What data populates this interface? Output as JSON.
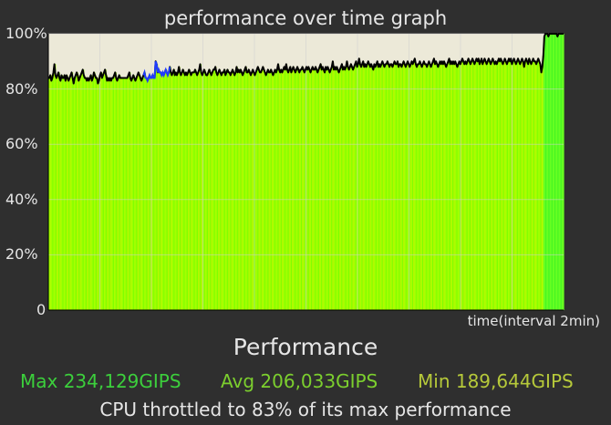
{
  "title": "performance over time graph",
  "chart_data": {
    "type": "area",
    "title": "performance over time graph",
    "xlabel": "time(interval 2min)",
    "y_tick_labels": [
      "100%",
      "80%",
      "60%",
      "40%",
      "20%",
      "0"
    ],
    "ylim": [
      0,
      100
    ],
    "grid": true,
    "series": [
      {
        "values": [
          84,
          84,
          85,
          83,
          84,
          86,
          89,
          85,
          84,
          85,
          86,
          84,
          83,
          85,
          84,
          84,
          85,
          83,
          85,
          84,
          83,
          84,
          85,
          86,
          84,
          82,
          84,
          85,
          86,
          85,
          83,
          84,
          85,
          86,
          87,
          85,
          84,
          84,
          83,
          84,
          83,
          84,
          85,
          83,
          84,
          86,
          85,
          84,
          84,
          82,
          83,
          85,
          86,
          84,
          85,
          86,
          87,
          85,
          83,
          84,
          83,
          84,
          83,
          84,
          84,
          85,
          86,
          84,
          83,
          84,
          85,
          84,
          84,
          84,
          84,
          84,
          84,
          84,
          84,
          85,
          86,
          84,
          83,
          84,
          85,
          84,
          83,
          84,
          85,
          86,
          85,
          84,
          83,
          84,
          85,
          86,
          84,
          84,
          83,
          84,
          85,
          84,
          84,
          85,
          84,
          84,
          90,
          89,
          86,
          87,
          86,
          86,
          85,
          86,
          85,
          86,
          87,
          86,
          85,
          86,
          88,
          86,
          85,
          86,
          87,
          85,
          86,
          85,
          86,
          88,
          86,
          85,
          86,
          87,
          86,
          85,
          86,
          85,
          86,
          87,
          86,
          85,
          86,
          86,
          86,
          87,
          86,
          85,
          86,
          87,
          89,
          86,
          85,
          86,
          87,
          86,
          85,
          85,
          86,
          87,
          86,
          85,
          86,
          87,
          87,
          88,
          86,
          85,
          86,
          87,
          86,
          85,
          86,
          86,
          87,
          85,
          86,
          87,
          86,
          86,
          85,
          86,
          87,
          86,
          85,
          86,
          88,
          86,
          87,
          86,
          87,
          86,
          85,
          86,
          87,
          88,
          86,
          86,
          87,
          86,
          85,
          86,
          87,
          86,
          85,
          86,
          87,
          88,
          87,
          86,
          86,
          87,
          88,
          87,
          86,
          85,
          86,
          87,
          86,
          86,
          87,
          86,
          85,
          86,
          87,
          86,
          87,
          89,
          87,
          86,
          87,
          86,
          87,
          88,
          87,
          89,
          87,
          86,
          87,
          88,
          86,
          87,
          88,
          87,
          86,
          87,
          88,
          87,
          86,
          87,
          87,
          88,
          87,
          86,
          87,
          88,
          87,
          88,
          87,
          86,
          87,
          88,
          87,
          87,
          88,
          87,
          86,
          87,
          88,
          89,
          87,
          88,
          87,
          86,
          88,
          87,
          88,
          87,
          86,
          87,
          88,
          90,
          87,
          88,
          87,
          88,
          87,
          86,
          87,
          88,
          89,
          87,
          88,
          87,
          88,
          90,
          88,
          87,
          88,
          89,
          88,
          87,
          88,
          89,
          90,
          88,
          89,
          91,
          89,
          88,
          89,
          90,
          88,
          89,
          88,
          89,
          90,
          89,
          88,
          89,
          88,
          87,
          89,
          88,
          89,
          90,
          88,
          89,
          88,
          89,
          90,
          89,
          88,
          89,
          89,
          90,
          89,
          88,
          89,
          89,
          88,
          89,
          90,
          89,
          89,
          90,
          88,
          89,
          89,
          88,
          89,
          90,
          89,
          88,
          89,
          90,
          89,
          88,
          89,
          90,
          89,
          90,
          91,
          89,
          88,
          89,
          89,
          90,
          89,
          88,
          89,
          90,
          89,
          89,
          88,
          89,
          90,
          89,
          88,
          89,
          90,
          91,
          89,
          90,
          89,
          88,
          89,
          90,
          89,
          90,
          89,
          90,
          89,
          88,
          89,
          90,
          91,
          89,
          90,
          89,
          90,
          89,
          90,
          89,
          88,
          89,
          90,
          89,
          90,
          91,
          90,
          89,
          90,
          89,
          90,
          91,
          90,
          89,
          90,
          91,
          90,
          89,
          90,
          91,
          90,
          91,
          89,
          90,
          91,
          89,
          90,
          91,
          90,
          89,
          90,
          91,
          90,
          89,
          90,
          91,
          90,
          89,
          90,
          89,
          90,
          91,
          90,
          91,
          90,
          89,
          90,
          91,
          90,
          89,
          90,
          91,
          90,
          91,
          89,
          90,
          91,
          90,
          89,
          90,
          91,
          90,
          89,
          90,
          91,
          90,
          88,
          90,
          91,
          90,
          89,
          91,
          90,
          89,
          90,
          91,
          90,
          90,
          89,
          90,
          91,
          90,
          89,
          86,
          88,
          92,
          99,
          100,
          100,
          100,
          99,
          100,
          100,
          100,
          100,
          100,
          100,
          100,
          100,
          99,
          100,
          100,
          100,
          100,
          100,
          100
        ]
      }
    ],
    "bar_colors": [
      "#80ff00",
      "#9cff00",
      "#aaff00",
      "#b4f500",
      "#66ff22",
      "#44f522"
    ],
    "line_color": "#000000",
    "segment_color": "#1f3bff",
    "plot_background": "#ece9d8",
    "grid_color": "#cfcfcf"
  },
  "performance": {
    "heading": "Performance",
    "max_label": "Max 234,129GIPS",
    "avg_label": "Avg 206,033GIPS",
    "min_label": "Min 189,644GIPS",
    "max_color": "#3ccf3c",
    "avg_color": "#7ccf2e",
    "min_color": "#b6c93a",
    "throttle_text": "CPU throttled to 83% of its max performance"
  }
}
